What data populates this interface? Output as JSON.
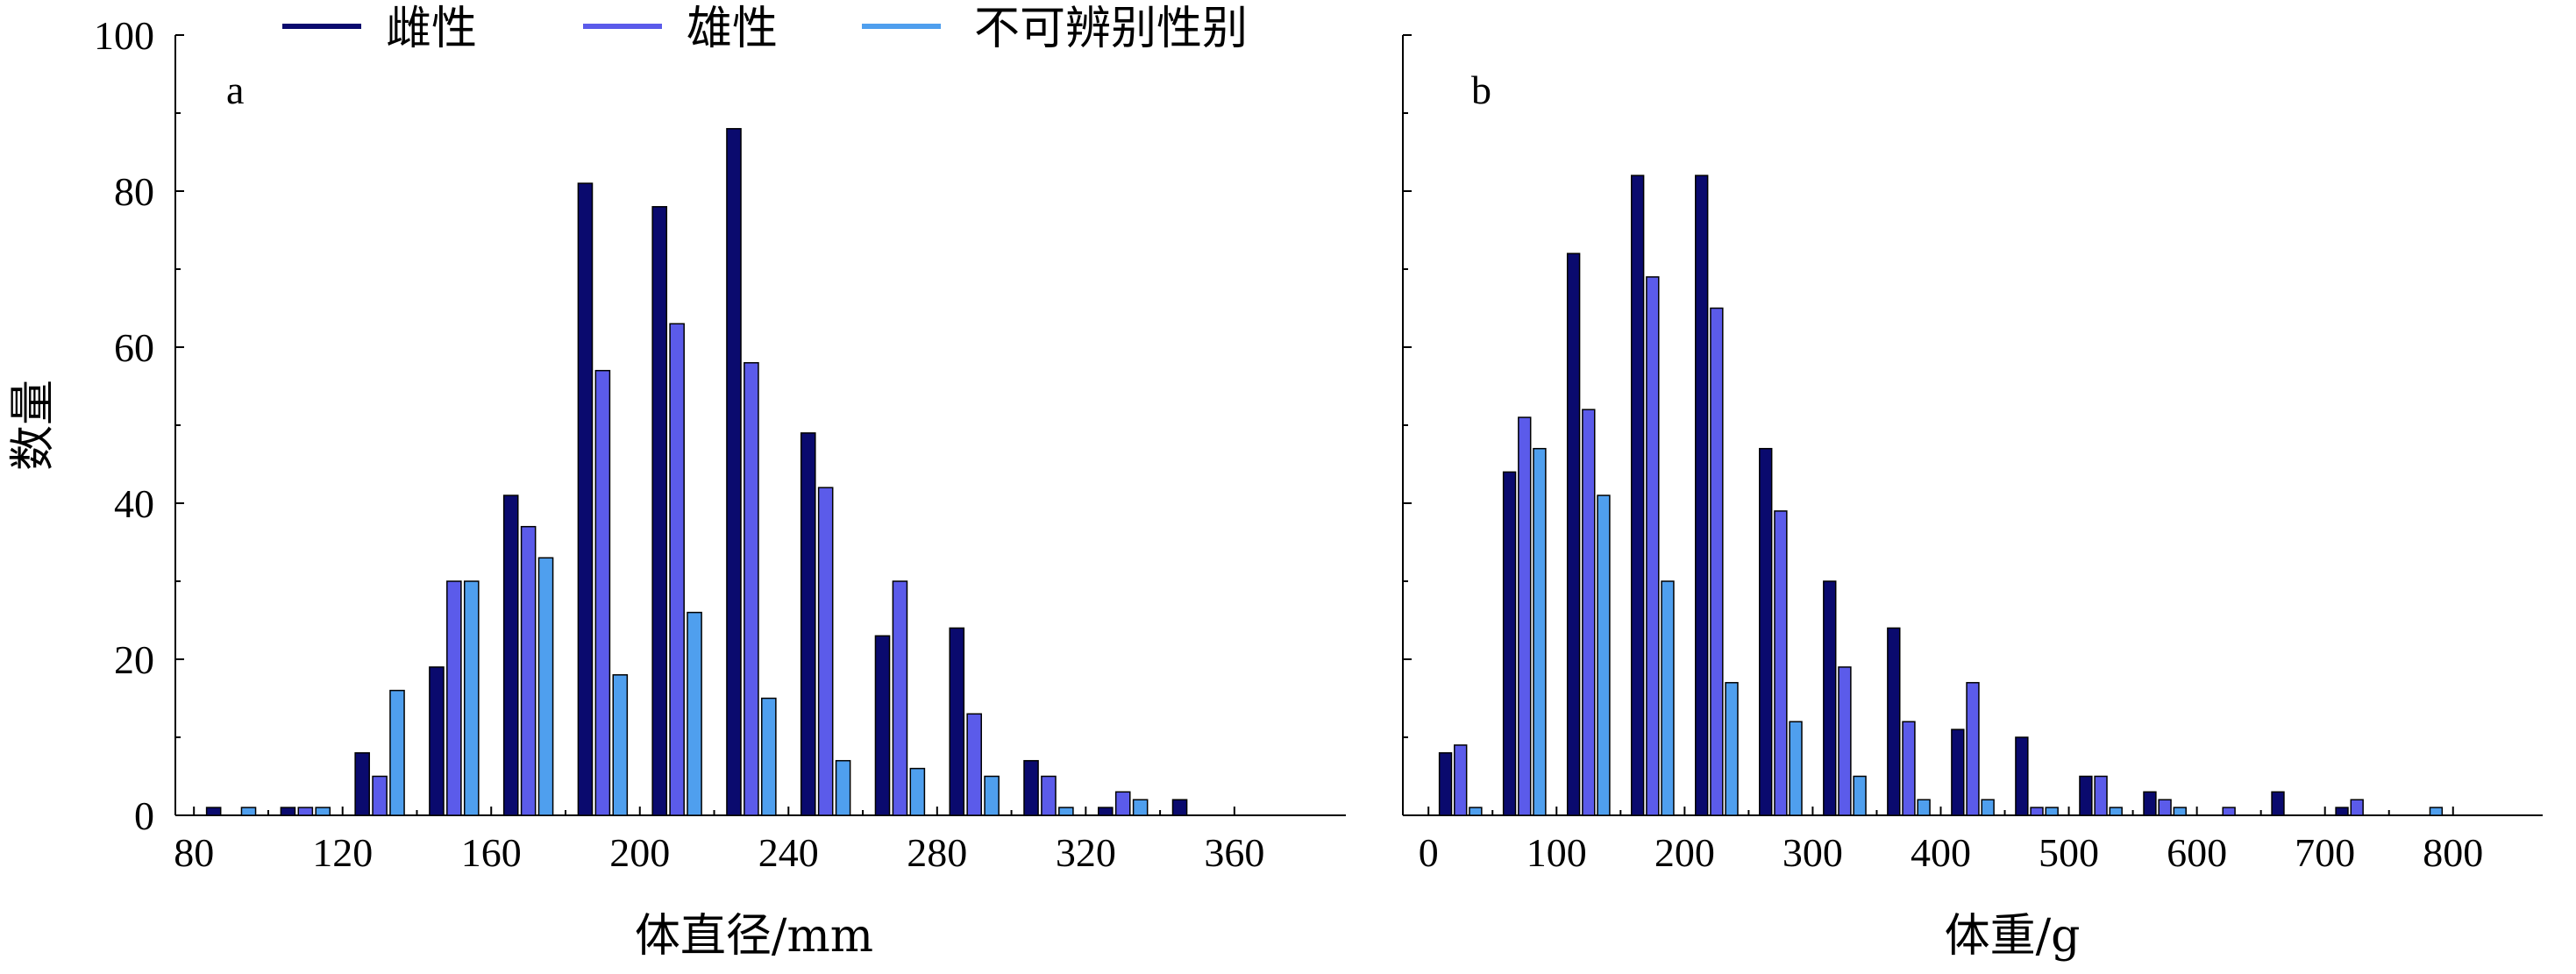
{
  "colors": {
    "female": "#0a0a6e",
    "male": "#5b5bea",
    "unknown": "#4f9fee"
  },
  "legend": [
    {
      "label": "雌性",
      "color": "#0a0a6e"
    },
    {
      "label": "雄性",
      "color": "#5b5bea"
    },
    {
      "label": "不可辨别性别",
      "color": "#4f9fee"
    }
  ],
  "chart_data": [
    {
      "type": "bar",
      "panel": "a",
      "xlabel": "体直径/mm",
      "ylabel": "数量",
      "xlim": [
        75,
        390
      ],
      "ylim": [
        0,
        100
      ],
      "xticks": [
        80,
        120,
        160,
        200,
        240,
        280,
        320,
        360
      ],
      "yticks": [
        0,
        20,
        40,
        60,
        80,
        100
      ],
      "bin_width": 20,
      "categories": [
        90,
        110,
        130,
        150,
        170,
        190,
        210,
        230,
        250,
        270,
        290,
        310,
        330,
        350
      ],
      "series": [
        {
          "name": "雌性",
          "values": [
            1,
            1,
            8,
            19,
            41,
            81,
            78,
            88,
            49,
            23,
            24,
            7,
            1,
            2
          ]
        },
        {
          "name": "雄性",
          "values": [
            0,
            1,
            5,
            30,
            37,
            57,
            63,
            58,
            42,
            30,
            13,
            5,
            3,
            0
          ]
        },
        {
          "name": "不可辨别性别",
          "values": [
            1,
            1,
            16,
            30,
            33,
            18,
            26,
            15,
            7,
            6,
            5,
            1,
            2,
            0
          ]
        }
      ]
    },
    {
      "type": "bar",
      "panel": "b",
      "xlabel": "体重/g",
      "ylabel": "",
      "xlim": [
        -20,
        870
      ],
      "ylim": [
        0,
        100
      ],
      "xticks": [
        0,
        100,
        200,
        300,
        400,
        500,
        600,
        700,
        800
      ],
      "yticks": [
        0,
        20,
        40,
        60,
        80,
        100
      ],
      "bin_width": 50,
      "categories": [
        25,
        75,
        125,
        175,
        225,
        275,
        325,
        375,
        425,
        475,
        525,
        575,
        625,
        675,
        725,
        775
      ],
      "series": [
        {
          "name": "雌性",
          "values": [
            8,
            44,
            72,
            82,
            82,
            47,
            30,
            24,
            11,
            10,
            5,
            3,
            0,
            3,
            1,
            0
          ]
        },
        {
          "name": "雄性",
          "values": [
            9,
            51,
            52,
            69,
            65,
            39,
            19,
            12,
            17,
            1,
            5,
            2,
            1,
            0,
            2,
            0
          ]
        },
        {
          "name": "不可辨别性别",
          "values": [
            1,
            47,
            41,
            30,
            17,
            12,
            5,
            2,
            2,
            1,
            1,
            1,
            0,
            0,
            0,
            1
          ]
        }
      ]
    }
  ]
}
